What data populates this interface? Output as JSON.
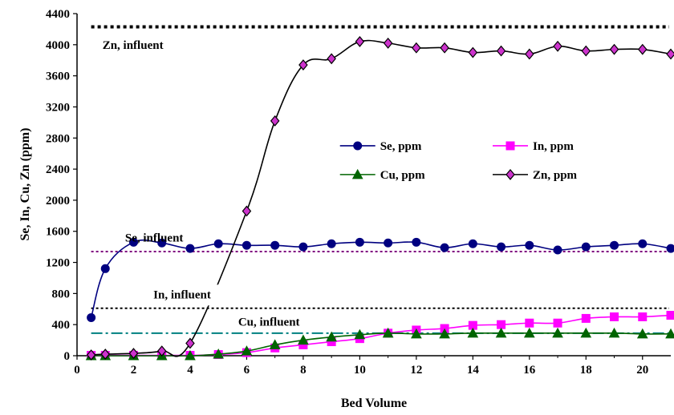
{
  "chart_data": {
    "type": "line",
    "title": "",
    "xlabel": "Bed Volume",
    "ylabel": "Se, In, Cu, Zn (ppm)",
    "xlim": [
      0,
      21
    ],
    "ylim": [
      0,
      4400
    ],
    "xticks": [
      0,
      2,
      4,
      6,
      8,
      10,
      12,
      14,
      16,
      18,
      20
    ],
    "yticks": [
      0,
      400,
      800,
      1200,
      1600,
      2000,
      2400,
      2800,
      3200,
      3600,
      4000,
      4400
    ],
    "grid": false,
    "legend_position": "center-right",
    "series": [
      {
        "name": "Se, ppm",
        "color": "#000080",
        "marker": "circle",
        "x": [
          0.5,
          1,
          2,
          3,
          4,
          5,
          6,
          7,
          8,
          9,
          10,
          11,
          12,
          13,
          14,
          15,
          16,
          17,
          18,
          19,
          20,
          21
        ],
        "y": [
          490,
          1120,
          1460,
          1450,
          1380,
          1440,
          1420,
          1420,
          1400,
          1440,
          1460,
          1450,
          1460,
          1390,
          1440,
          1400,
          1420,
          1360,
          1400,
          1420,
          1440,
          1380
        ]
      },
      {
        "name": "In, ppm",
        "color": "#ff00ff",
        "marker": "square",
        "x": [
          0.5,
          1,
          2,
          3,
          4,
          5,
          6,
          7,
          8,
          9,
          10,
          11,
          12,
          13,
          14,
          15,
          16,
          17,
          18,
          19,
          20,
          21
        ],
        "y": [
          5,
          5,
          5,
          5,
          5,
          15,
          40,
          100,
          140,
          180,
          220,
          290,
          330,
          350,
          390,
          400,
          420,
          420,
          480,
          500,
          500,
          520
        ]
      },
      {
        "name": "Cu, ppm",
        "color": "#006400",
        "marker": "triangle",
        "x": [
          0.5,
          1,
          2,
          3,
          4,
          5,
          6,
          7,
          8,
          9,
          10,
          11,
          12,
          13,
          14,
          15,
          16,
          17,
          18,
          19,
          20,
          21
        ],
        "y": [
          0,
          0,
          0,
          0,
          0,
          20,
          60,
          140,
          200,
          240,
          270,
          290,
          280,
          280,
          290,
          290,
          290,
          290,
          290,
          290,
          280,
          280
        ]
      },
      {
        "name": "Zn, ppm",
        "color": "#000000",
        "marker_fill": "#cc33cc",
        "marker": "diamond",
        "x": [
          0.5,
          1,
          2,
          3,
          4,
          6,
          7,
          8,
          9,
          10,
          11,
          12,
          13,
          14,
          15,
          16,
          17,
          18,
          19,
          20,
          21
        ],
        "y": [
          10,
          20,
          30,
          60,
          160,
          1860,
          3020,
          3740,
          3820,
          4040,
          4020,
          3960,
          3960,
          3900,
          3920,
          3880,
          3980,
          3920,
          3940,
          3940,
          3880
        ]
      }
    ],
    "reference_lines": [
      {
        "label": "Zn, influent",
        "value": 4230,
        "color": "#000000",
        "style": "dotted-heavy"
      },
      {
        "label": "Se, influent",
        "value": 1340,
        "color": "#800080",
        "style": "dotted"
      },
      {
        "label": "In, influent",
        "value": 610,
        "color": "#000000",
        "style": "dotted"
      },
      {
        "label": "Cu, influent",
        "value": 290,
        "color": "#008080",
        "style": "dash-dot"
      }
    ]
  }
}
